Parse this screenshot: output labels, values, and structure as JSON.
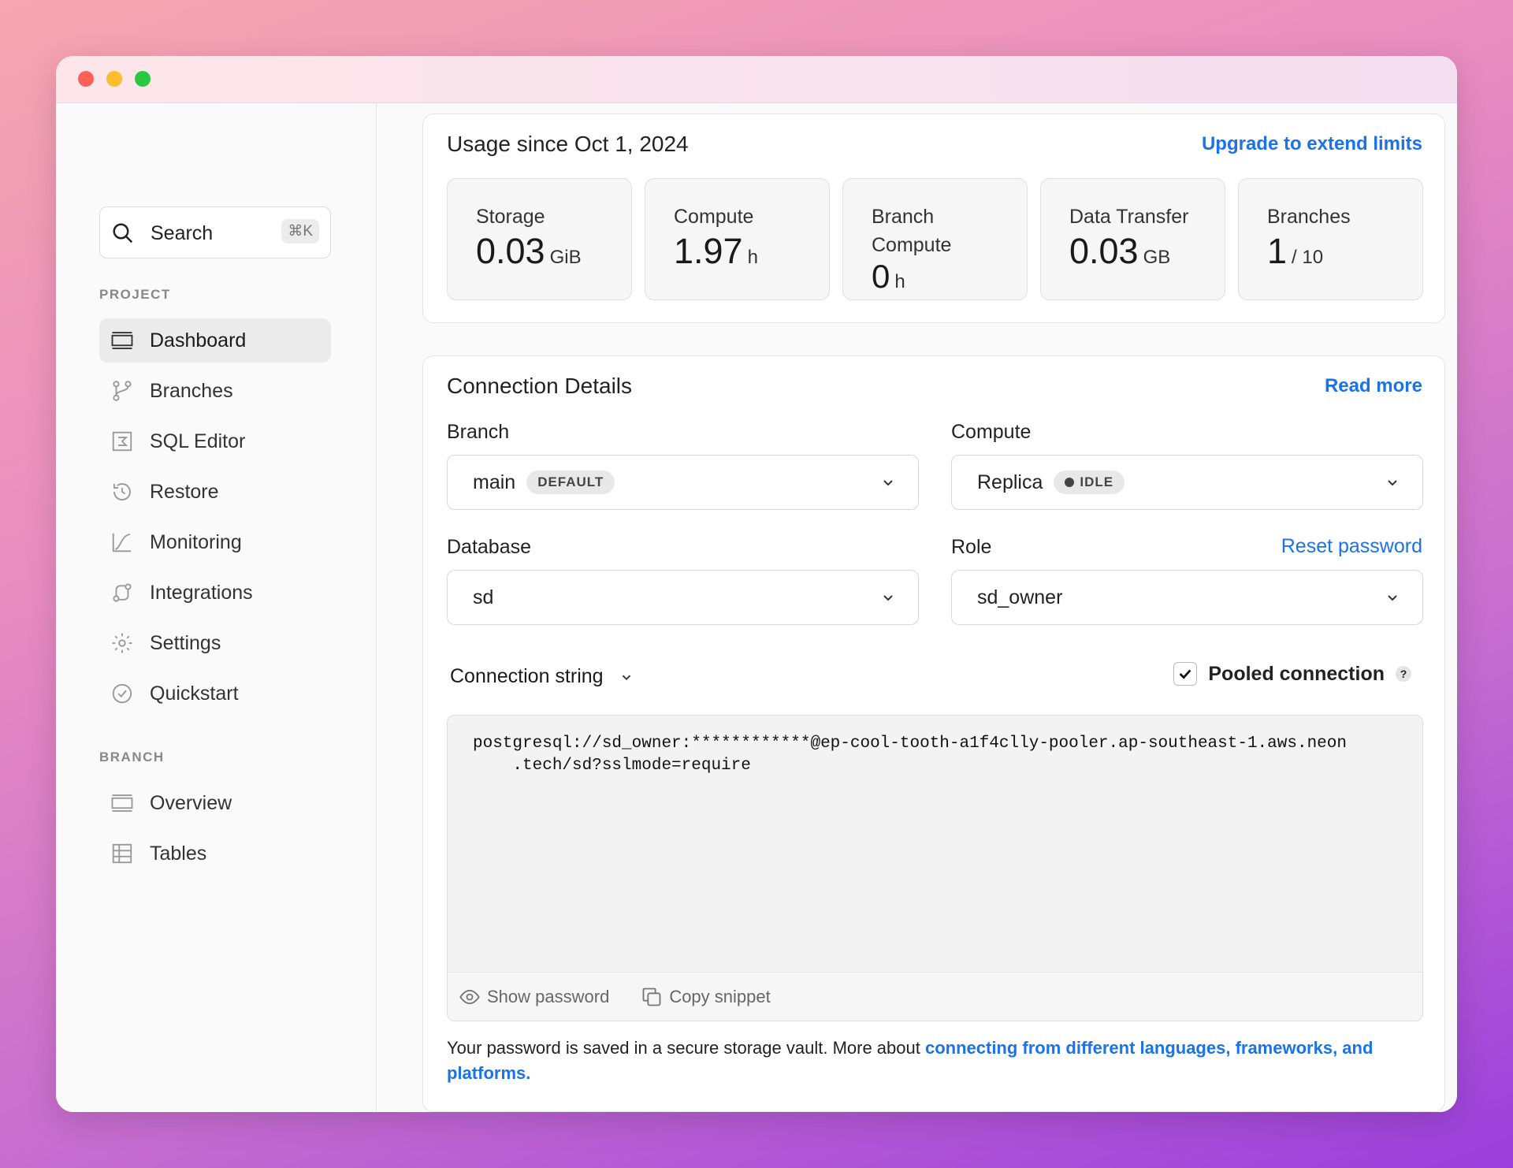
{
  "window": {
    "controls": [
      "close",
      "minimize",
      "maximize"
    ]
  },
  "sidebar": {
    "search": {
      "placeholder": "Search",
      "shortcut": "⌘K"
    },
    "project_label": "PROJECT",
    "project_items": [
      {
        "label": "Dashboard",
        "icon": "dashboard-icon",
        "active": true
      },
      {
        "label": "Branches",
        "icon": "branch-icon"
      },
      {
        "label": "SQL Editor",
        "icon": "sql-editor-icon"
      },
      {
        "label": "Restore",
        "icon": "restore-icon"
      },
      {
        "label": "Monitoring",
        "icon": "monitoring-icon"
      },
      {
        "label": "Integrations",
        "icon": "integrations-icon"
      },
      {
        "label": "Settings",
        "icon": "gear-icon"
      },
      {
        "label": "Quickstart",
        "icon": "check-circle-icon"
      }
    ],
    "branch_label": "BRANCH",
    "branch_items": [
      {
        "label": "Overview",
        "icon": "overview-icon"
      },
      {
        "label": "Tables",
        "icon": "table-icon"
      }
    ]
  },
  "usage": {
    "title": "Usage since Oct 1, 2024",
    "upgrade_link": "Upgrade to extend limits",
    "stats": [
      {
        "label": "Storage",
        "value": "0.03",
        "unit": "GiB"
      },
      {
        "label": "Compute",
        "value": "1.97",
        "unit": "h"
      },
      {
        "label": "Branch Compute",
        "value": "0",
        "unit": "h"
      },
      {
        "label": "Data Transfer",
        "value": "0.03",
        "unit": "GB"
      },
      {
        "label": "Branches",
        "value": "1",
        "unit": "/ 10"
      }
    ]
  },
  "connection": {
    "title": "Connection Details",
    "read_more": "Read more",
    "branch_label": "Branch",
    "branch_value": "main",
    "branch_badge": "DEFAULT",
    "compute_label": "Compute",
    "compute_value": "Replica",
    "compute_badge": "IDLE",
    "database_label": "Database",
    "database_value": "sd",
    "role_label": "Role",
    "role_value": "sd_owner",
    "reset_password": "Reset password",
    "string_type": "Connection string",
    "pooled_label": "Pooled connection",
    "pooled_checked": true,
    "help": "?",
    "string_line1": "postgresql://sd_owner:************@ep-cool-tooth-a1f4clly-pooler.ap-southeast-1.aws.neon",
    "string_line2": "    .tech/sd?sslmode=require",
    "show_password": "Show password",
    "copy_snippet": "Copy snippet",
    "note": "Your password is saved in a secure storage vault. More about ",
    "note_link": "connecting from different languages, frameworks, and platforms."
  },
  "colors": {
    "accent": "#1a73e8",
    "close": "#fe5f57",
    "minimize": "#febc2e",
    "maximize": "#28c840"
  }
}
